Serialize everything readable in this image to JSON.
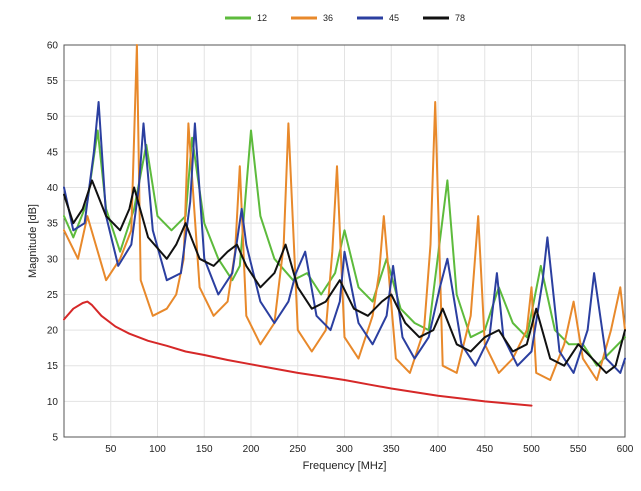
{
  "chart_data": {
    "type": "line",
    "title": "",
    "xlabel": "Frequency [MHz]",
    "ylabel": "Magnitude [dB]",
    "xlim": [
      0,
      600
    ],
    "ylim": [
      5,
      60
    ],
    "xticks": [
      50,
      100,
      150,
      200,
      250,
      300,
      350,
      400,
      450,
      500,
      550,
      600
    ],
    "yticks": [
      5,
      10,
      15,
      20,
      25,
      30,
      35,
      40,
      45,
      50,
      55,
      60
    ],
    "grid": true,
    "legend_position": "top",
    "series": [
      {
        "name": "12",
        "color": "#5dbb3c",
        "x": [
          0,
          10,
          25,
          36,
          45,
          60,
          75,
          88,
          100,
          115,
          130,
          137,
          150,
          165,
          180,
          188,
          200,
          210,
          225,
          245,
          260,
          275,
          290,
          300,
          315,
          330,
          345,
          360,
          375,
          390,
          410,
          420,
          435,
          450,
          465,
          480,
          495,
          510,
          525,
          540,
          555,
          570,
          585,
          600
        ],
        "y": [
          36,
          33,
          38,
          48,
          37,
          31,
          37,
          46,
          36,
          34,
          36,
          47,
          35,
          30,
          27,
          29,
          48,
          36,
          30,
          27,
          28,
          25,
          28,
          34,
          26,
          24,
          30,
          23,
          21,
          20,
          41,
          25,
          19,
          20,
          26,
          21,
          19,
          29,
          20,
          18,
          18,
          15,
          17,
          19
        ]
      },
      {
        "name": "36",
        "color": "#e8892b",
        "x": [
          0,
          15,
          25,
          45,
          60,
          72,
          78,
          82,
          95,
          110,
          120,
          128,
          133,
          145,
          160,
          175,
          183,
          188,
          195,
          210,
          225,
          235,
          240,
          250,
          265,
          280,
          287,
          292,
          300,
          315,
          330,
          337,
          342,
          355,
          370,
          385,
          392,
          397,
          405,
          420,
          435,
          443,
          450,
          465,
          480,
          495,
          500,
          505,
          520,
          535,
          545,
          555,
          570,
          585,
          595,
          600
        ],
        "y": [
          34,
          30,
          36,
          27,
          30,
          34,
          60,
          27,
          22,
          23,
          25,
          30,
          49,
          26,
          22,
          24,
          31,
          43,
          22,
          18,
          21,
          32,
          49,
          20,
          17,
          20,
          31,
          43,
          19,
          16,
          22,
          28,
          36,
          16,
          14,
          20,
          32,
          52,
          15,
          14,
          22,
          36,
          18,
          14,
          16,
          20,
          26,
          14,
          13,
          18,
          24,
          16,
          13,
          20,
          26,
          20
        ]
      },
      {
        "name": "45",
        "color": "#2b3fa0",
        "x": [
          0,
          10,
          22,
          32,
          37,
          45,
          58,
          72,
          80,
          85,
          95,
          110,
          125,
          135,
          140,
          150,
          165,
          180,
          190,
          195,
          210,
          225,
          240,
          248,
          258,
          270,
          285,
          295,
          300,
          315,
          330,
          345,
          352,
          362,
          375,
          390,
          402,
          410,
          425,
          440,
          455,
          463,
          470,
          485,
          500,
          512,
          517,
          530,
          545,
          560,
          567,
          580,
          595,
          600
        ],
        "y": [
          40,
          34,
          35,
          45,
          52,
          36,
          29,
          32,
          40,
          49,
          34,
          27,
          28,
          38,
          49,
          30,
          25,
          28,
          37,
          32,
          24,
          21,
          24,
          28,
          31,
          22,
          20,
          24,
          31,
          21,
          18,
          22,
          29,
          19,
          16,
          19,
          26,
          30,
          18,
          15,
          19,
          28,
          19,
          15,
          17,
          27,
          33,
          17,
          14,
          20,
          28,
          16,
          14,
          16
        ]
      },
      {
        "name": "78",
        "color": "#111111",
        "x": [
          0,
          10,
          20,
          30,
          45,
          60,
          70,
          75,
          90,
          110,
          120,
          130,
          145,
          160,
          175,
          185,
          195,
          210,
          225,
          237,
          250,
          265,
          280,
          295,
          310,
          325,
          340,
          350,
          365,
          380,
          395,
          405,
          420,
          435,
          450,
          465,
          480,
          495,
          505,
          520,
          535,
          550,
          565,
          580,
          590,
          600
        ],
        "y": [
          39,
          35,
          37,
          41,
          36,
          34,
          37,
          40,
          33,
          30,
          32,
          35,
          30,
          29,
          31,
          32,
          29,
          26,
          28,
          32,
          26,
          23,
          24,
          27,
          23,
          22,
          24,
          25,
          21,
          19,
          20,
          23,
          18,
          17,
          19,
          20,
          17,
          18,
          23,
          16,
          15,
          18,
          16,
          14,
          15,
          20
        ]
      },
      {
        "name": "",
        "color": "#d62828",
        "x": [
          0,
          10,
          20,
          25,
          30,
          40,
          55,
          70,
          90,
          110,
          130,
          150,
          175,
          200,
          225,
          250,
          275,
          300,
          325,
          350,
          375,
          400,
          425,
          450,
          475,
          500
        ],
        "y": [
          21.5,
          23.0,
          23.8,
          24.0,
          23.5,
          22.0,
          20.5,
          19.5,
          18.5,
          17.8,
          17.0,
          16.5,
          15.8,
          15.2,
          14.6,
          14.0,
          13.5,
          13.0,
          12.4,
          11.8,
          11.3,
          10.8,
          10.4,
          10.0,
          9.7,
          9.4
        ]
      }
    ]
  }
}
